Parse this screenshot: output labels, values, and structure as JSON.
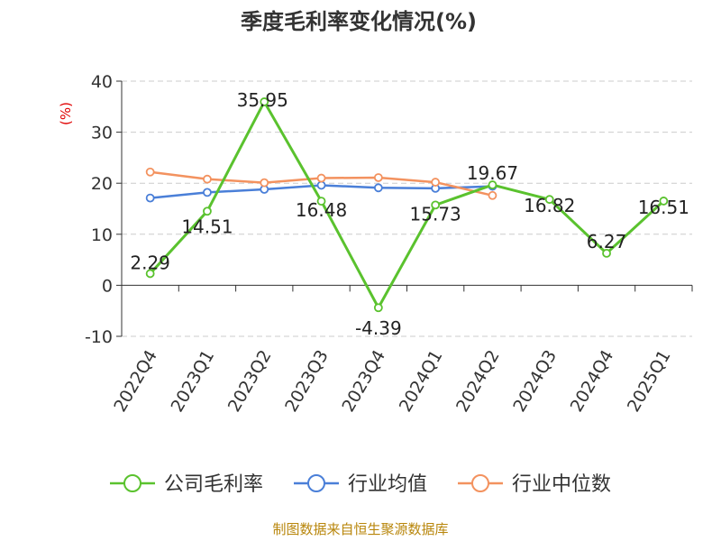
{
  "chart_data": {
    "type": "line",
    "title": "季度毛利率变化情况(%)",
    "ylabel": "(%)",
    "ylim": [
      -10,
      40
    ],
    "yticks": [
      -10,
      0,
      10,
      20,
      30,
      40
    ],
    "categories": [
      "2022Q4",
      "2023Q1",
      "2023Q2",
      "2023Q3",
      "2023Q4",
      "2024Q1",
      "2024Q2",
      "2024Q3",
      "2024Q4",
      "2025Q1"
    ],
    "grid": true,
    "legend_position": "bottom",
    "series": [
      {
        "name": "公司毛利率",
        "color": "#5ac22e",
        "values": [
          2.29,
          14.51,
          35.95,
          16.48,
          -4.39,
          15.73,
          19.67,
          16.82,
          6.27,
          16.51
        ],
        "labels": [
          "2.29",
          "14.51",
          "35.95",
          "16.48",
          "-4.39",
          "15.73",
          "19.67",
          "16.82",
          "6.27",
          "16.51"
        ]
      },
      {
        "name": "行业均值",
        "color": "#4a7fd8",
        "values": [
          17.1,
          18.2,
          18.8,
          19.6,
          19.1,
          19.0,
          19.4,
          null,
          null,
          null
        ]
      },
      {
        "name": "行业中位数",
        "color": "#f3925f",
        "values": [
          22.2,
          20.8,
          20.1,
          21.0,
          21.1,
          20.2,
          17.6,
          null,
          null,
          null
        ]
      }
    ],
    "source": "制图数据来自恒生聚源数据库"
  }
}
